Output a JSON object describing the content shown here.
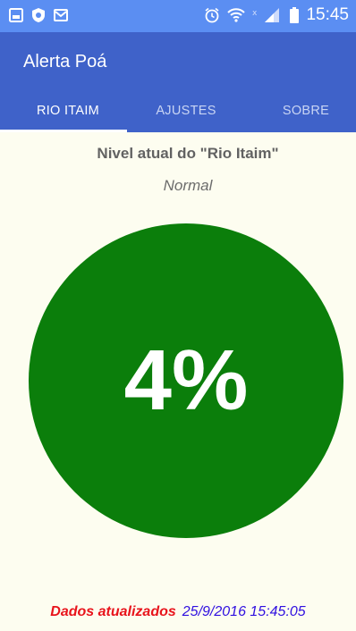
{
  "status_bar": {
    "time": "15:45",
    "left_icons": [
      "gallery-icon",
      "shield-icon",
      "mail-icon"
    ],
    "right_icons": [
      "alarm-icon",
      "wifi-icon",
      "signal-icon",
      "battery-icon"
    ]
  },
  "app_bar": {
    "title": "Alerta Poá"
  },
  "tabs": [
    {
      "label": "RIO ITAIM",
      "active": true
    },
    {
      "label": "AJUSTES",
      "active": false
    },
    {
      "label": "SOBRE",
      "active": false
    }
  ],
  "content": {
    "level_title": "Nivel atual do \"Rio Itaim\"",
    "level_status": "Normal",
    "level_percent_text": "4%",
    "level_percent": 4,
    "gauge_color": "#0b7e0b"
  },
  "footer": {
    "label": "Dados atualizados",
    "timestamp": "25/9/2016 15:45:05",
    "label_color": "#e8141c",
    "timestamp_color": "#3010e0"
  },
  "colors": {
    "status_bar": "#5b8ef2",
    "app_bar": "#3f62c9",
    "background": "#fdfdf0"
  }
}
